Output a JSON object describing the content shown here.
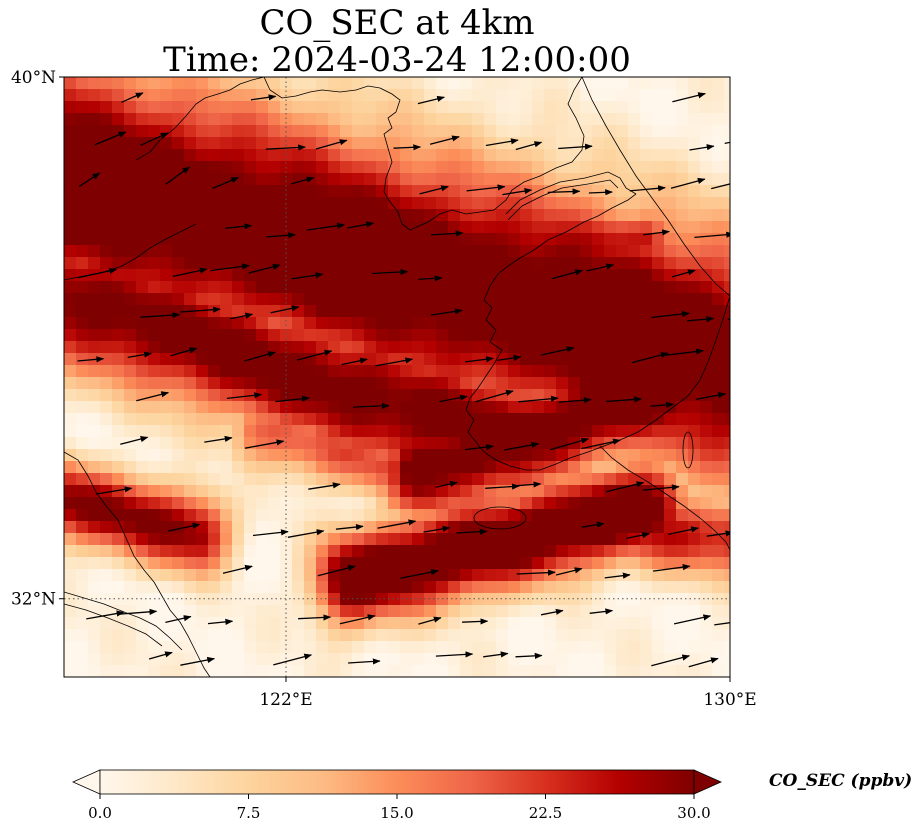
{
  "title_line1": "CO_SEC at 4km",
  "title_line2": "Time: 2024-03-24 12:00:00",
  "axes": {
    "lon_range": [
      118,
      130
    ],
    "lat_range": [
      30.8,
      40
    ],
    "lat_ticks": [
      {
        "value": 40,
        "label": "40°N"
      },
      {
        "value": 32,
        "label": "32°N"
      }
    ],
    "lon_ticks": [
      {
        "value": 122,
        "label": "122°E"
      },
      {
        "value": 130,
        "label": "130°E"
      }
    ],
    "gridlines": [
      {
        "axis": "lon",
        "value": 122
      },
      {
        "axis": "lat",
        "value": 32
      }
    ]
  },
  "colorbar": {
    "title": "CO_SEC (ppbv)",
    "min": 0,
    "max": 30,
    "extend": "both",
    "colormap": "OrRd",
    "stops": [
      "#fff7ec",
      "#fee8c8",
      "#fdd49e",
      "#fdbb84",
      "#fc8d59",
      "#ef6548",
      "#d7301f",
      "#b30000",
      "#7f0000"
    ],
    "ticks": [
      {
        "value": 0,
        "label": "0.0"
      },
      {
        "value": 7.5,
        "label": "7.5"
      },
      {
        "value": 15,
        "label": "15.0"
      },
      {
        "value": 22.5,
        "label": "22.5"
      },
      {
        "value": 30,
        "label": "30.0"
      }
    ]
  },
  "chart_data": {
    "type": "heatmap",
    "variable": "CO_SEC",
    "units": "ppbv",
    "level": "4km",
    "wind_vectors": "westerly, mostly eastward to east-northeast",
    "plumes": [
      {
        "axis_start": [
          117.5,
          38.6
        ],
        "axis_end": [
          131.5,
          35.3
        ],
        "width": 1.8,
        "peak": 36
      },
      {
        "axis_start": [
          117.0,
          36.9
        ],
        "axis_end": [
          126.0,
          34.4
        ],
        "width": 1.0,
        "peak": 32
      },
      {
        "axis_start": [
          124.5,
          34.0
        ],
        "axis_end": [
          131.0,
          35.8
        ],
        "width": 0.8,
        "peak": 33
      },
      {
        "axis_start": [
          121.5,
          34.6
        ],
        "axis_end": [
          127.8,
          33.0
        ],
        "width": 0.55,
        "peak": 20
      },
      {
        "axis_start": [
          123.2,
          32.3
        ],
        "axis_end": [
          128.5,
          33.4
        ],
        "width": 0.7,
        "peak": 36
      },
      {
        "axis_start": [
          126.5,
          33.2
        ],
        "axis_end": [
          130.5,
          32.9
        ],
        "width": 0.6,
        "peak": 25
      },
      {
        "axis_start": [
          118.0,
          33.5
        ],
        "axis_end": [
          120.4,
          33.0
        ],
        "width": 0.6,
        "peak": 30
      },
      {
        "axis_start": [
          118.8,
          39.1
        ],
        "axis_end": [
          121.6,
          38.6
        ],
        "width": 0.6,
        "peak": 13
      },
      {
        "axis_start": [
          126.5,
          37.5
        ],
        "axis_end": [
          128.5,
          37.5
        ],
        "width": 0.5,
        "peak": 25
      }
    ]
  }
}
